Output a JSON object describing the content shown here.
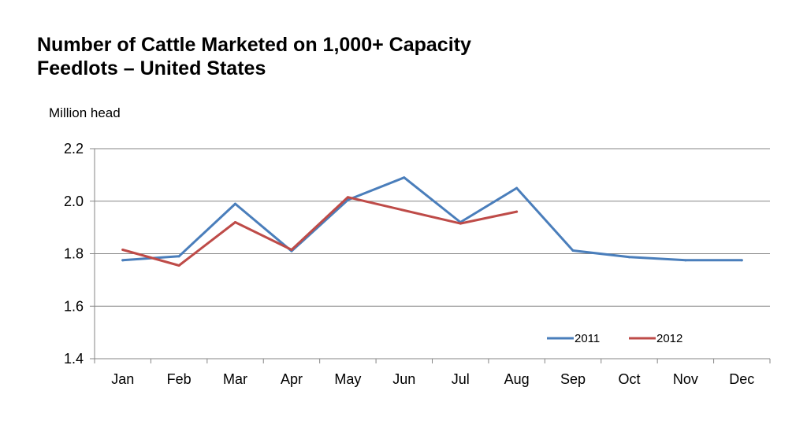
{
  "chart_data": {
    "type": "line",
    "title": [
      "Number of Cattle Marketed on 1,000+ Capacity",
      "Feedlots – United States"
    ],
    "ylabel": "Million head",
    "xlabel": "",
    "categories": [
      "Jan",
      "Feb",
      "Mar",
      "Apr",
      "May",
      "Jun",
      "Jul",
      "Aug",
      "Sep",
      "Oct",
      "Nov",
      "Dec"
    ],
    "ylim": [
      1.4,
      2.2
    ],
    "yticks": [
      "1.4",
      "1.6",
      "1.8",
      "2.0",
      "2.2"
    ],
    "grid": "horizontal",
    "legend_position": "bottom-right",
    "series": [
      {
        "name": "2011",
        "color": "#4A7EBB",
        "values": [
          1.775,
          1.79,
          1.99,
          1.81,
          2.005,
          2.09,
          1.92,
          2.05,
          1.812,
          1.787,
          1.775,
          1.775
        ]
      },
      {
        "name": "2012",
        "color": "#BE4B48",
        "values": [
          1.815,
          1.755,
          1.92,
          1.815,
          2.015,
          null,
          1.915,
          1.96,
          null,
          null,
          null,
          null
        ]
      }
    ]
  }
}
